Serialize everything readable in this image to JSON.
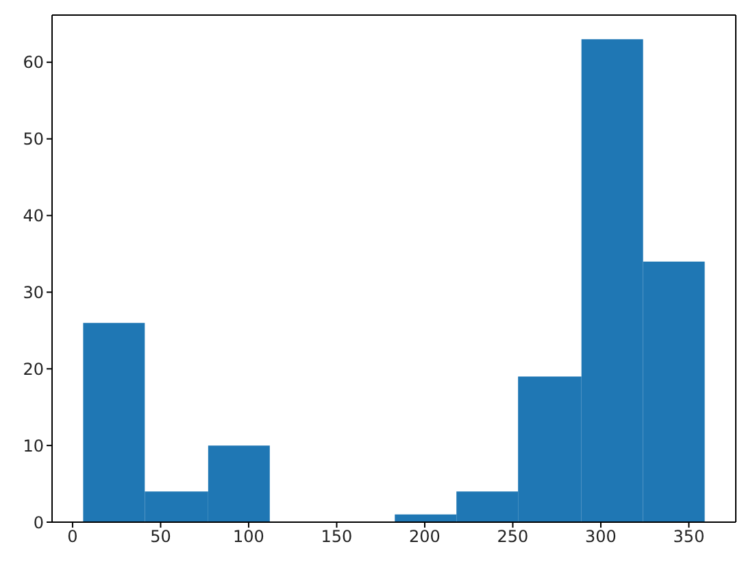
{
  "chart_data": {
    "type": "histogram",
    "bins": [
      6,
      41,
      77,
      112,
      183,
      218,
      253,
      289,
      324,
      359
    ],
    "values": [
      26,
      4,
      10,
      0,
      1,
      4,
      19,
      63,
      34
    ],
    "color": "#1f77b4",
    "xlim": [
      -11.65,
      376.65
    ],
    "xticks": [
      0,
      50,
      100,
      150,
      200,
      250,
      300,
      350
    ],
    "ylim": [
      0,
      66.15
    ],
    "yticks": [
      0,
      10,
      20,
      30,
      40,
      50,
      60
    ],
    "grid": false
  }
}
